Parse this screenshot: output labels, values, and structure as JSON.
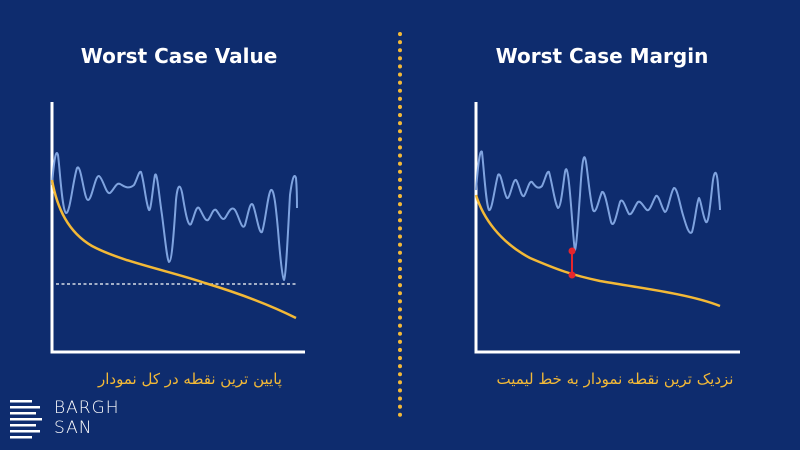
{
  "left_panel": {
    "title": "Worst Case Value",
    "caption": "پایین ترین نقطه در کل نمودار"
  },
  "right_panel": {
    "title": "Worst Case Margin",
    "caption": "نزدیک ترین نقطه نمودار به خط لیمیت"
  },
  "logo": {
    "line1": "BARGH",
    "line2": "SAN"
  },
  "colors": {
    "background": "#0e2c6e",
    "limit_curve": "#f3b937",
    "signal": "#7fa3df",
    "marker": "#e5262d",
    "divider": "#f3b937"
  }
}
